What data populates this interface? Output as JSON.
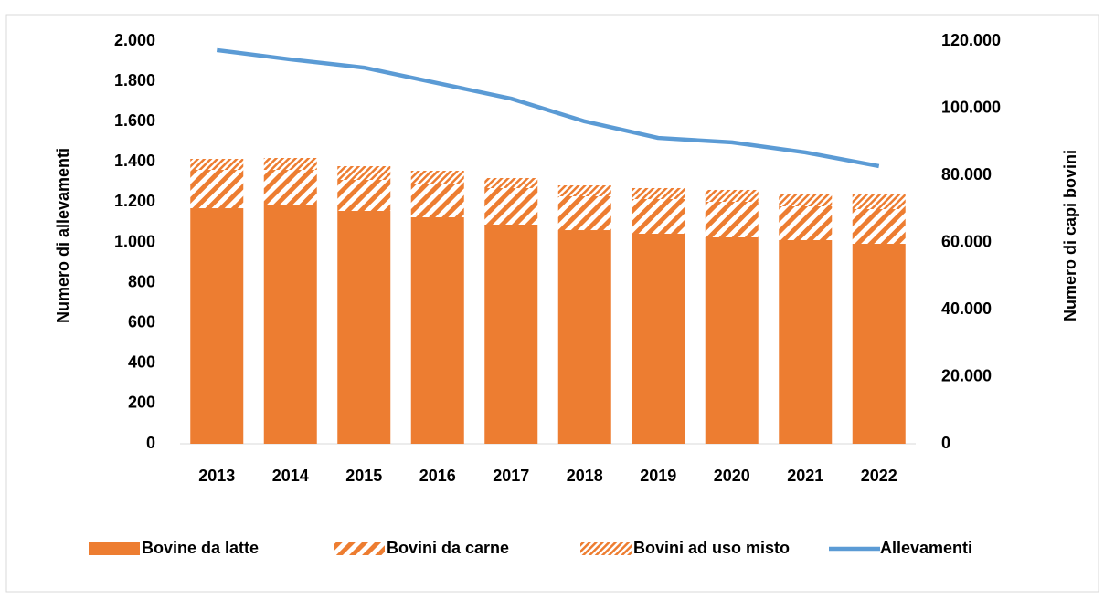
{
  "chart_data": {
    "type": "bar",
    "stacked": true,
    "y_label": "Numero di allevamenti",
    "y2_label": "Numero di capi bovini",
    "categories": [
      "2013",
      "2014",
      "2015",
      "2016",
      "2017",
      "2018",
      "2019",
      "2020",
      "2021",
      "2022"
    ],
    "series": [
      {
        "name": "Bovine da latte",
        "color": "#ed7d31",
        "pattern": "solid",
        "axis": "y2",
        "values": [
          70200,
          71020,
          69390,
          67480,
          65310,
          63670,
          62590,
          61500,
          60680,
          59590
        ]
      },
      {
        "name": "Bovini da carne",
        "color": "#ed7d31",
        "pattern": "wide-hatch",
        "axis": "y2",
        "values": [
          11430,
          10610,
          9250,
          10070,
          10880,
          10070,
          10340,
          10610,
          10070,
          10340
        ]
      },
      {
        "name": "Bovini ad uso misto",
        "color": "#ed7d31",
        "pattern": "fine-hatch",
        "axis": "y2",
        "values": [
          3265,
          3540,
          4080,
          3810,
          2990,
          3265,
          3265,
          3540,
          3810,
          4350
        ]
      },
      {
        "name": "Allevamenti",
        "color": "#5b9bd5",
        "type": "line",
        "axis": "y",
        "values": [
          1955,
          1909,
          1868,
          1791,
          1714,
          1601,
          1519,
          1497,
          1447,
          1379
        ]
      }
    ],
    "ylim": [
      0,
      2000
    ],
    "yticks": [
      0,
      200,
      400,
      600,
      800,
      {
        "value": 1000,
        "label": "1.000"
      },
      {
        "value": 1200,
        "label": "1.200"
      },
      {
        "value": 1400,
        "label": "1.400"
      },
      {
        "value": 1600,
        "label": "1.600"
      },
      {
        "value": 1800,
        "label": "1.800"
      },
      {
        "value": 2000,
        "label": "2.000"
      }
    ],
    "y2lim": [
      0,
      120000
    ],
    "y2ticks": [
      0,
      {
        "value": 20000,
        "label": "20.000"
      },
      {
        "value": 40000,
        "label": "40.000"
      },
      {
        "value": 60000,
        "label": "60.000"
      },
      {
        "value": 80000,
        "label": "80.000"
      },
      {
        "value": 100000,
        "label": "100.000"
      },
      {
        "value": 120000,
        "label": "120.000"
      }
    ],
    "legend": "bottom"
  }
}
